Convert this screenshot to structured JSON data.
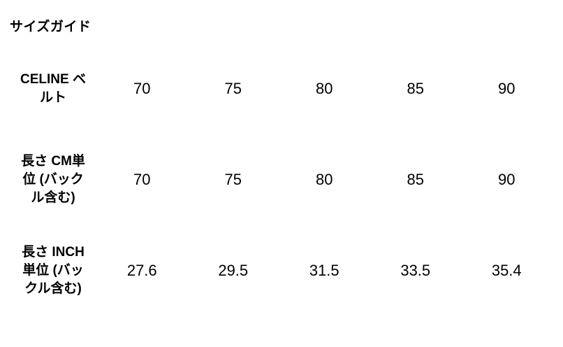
{
  "title": "サイズガイド",
  "table": {
    "rows": [
      {
        "label": "CELINE ベルト",
        "values": [
          "70",
          "75",
          "80",
          "85",
          "90"
        ]
      },
      {
        "label": "長さ CM単位 (バックル含む)",
        "values": [
          "70",
          "75",
          "80",
          "85",
          "90"
        ]
      },
      {
        "label": "長さ INCH単位 (バックル含む)",
        "values": [
          "27.6",
          "29.5",
          "31.5",
          "33.5",
          "35.4"
        ]
      }
    ]
  },
  "colors": {
    "text": "#000000",
    "background": "#ffffff"
  },
  "chart_data": {
    "type": "table",
    "title": "サイズガイド",
    "row_labels": [
      "CELINE ベルト",
      "長さ CM単位 (バックル含む)",
      "長さ INCH単位 (バックル含む)"
    ],
    "rows": [
      [
        "70",
        "75",
        "80",
        "85",
        "90"
      ],
      [
        "70",
        "75",
        "80",
        "85",
        "90"
      ],
      [
        "27.6",
        "29.5",
        "31.5",
        "33.5",
        "35.4"
      ]
    ]
  }
}
